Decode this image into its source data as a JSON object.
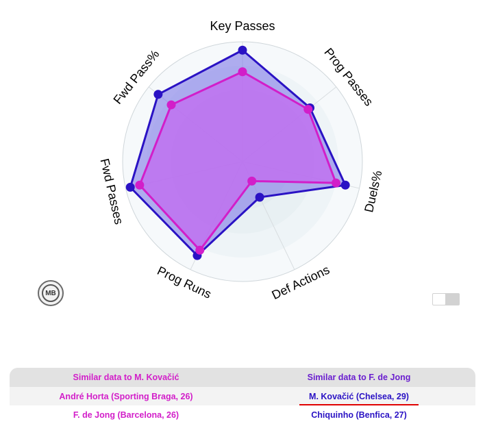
{
  "chart_data": {
    "type": "radar",
    "axes": [
      "Key Passes",
      "Prog Passes",
      "Duels%",
      "Def Actions",
      "Prog Runs",
      "Fwd Passes",
      "Fwd Pass%"
    ],
    "rmax": 100,
    "series": [
      {
        "values": [
          93,
          72,
          88,
          33,
          87,
          96,
          90
        ],
        "color": "#2a12c4",
        "fill": "#7f78e8"
      },
      {
        "values": [
          75,
          70,
          80,
          18,
          82,
          88,
          76
        ],
        "color": "#d21ec9",
        "fill": "#c36af0"
      }
    ],
    "grid": true
  },
  "table": {
    "headers": [
      "Similar data to M. Kovačić",
      "Similar data to F. de Jong"
    ],
    "rows": [
      [
        "André Horta (Sporting Braga, 26)",
        "M. Kovačić (Chelsea, 29)"
      ],
      [
        "F. de Jong (Barcelona, 26)",
        "Chiquinho (Benfica, 27)"
      ]
    ]
  },
  "logo_text": "MB"
}
